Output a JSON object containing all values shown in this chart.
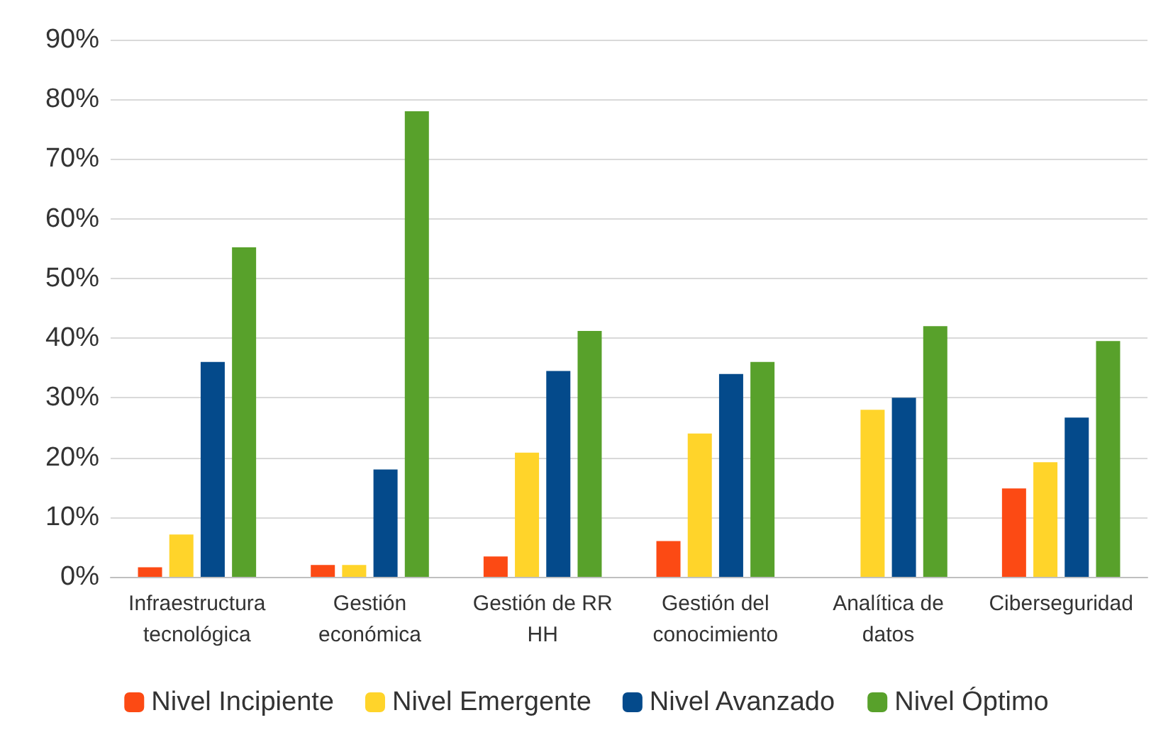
{
  "chart_data": {
    "type": "bar",
    "categories": [
      "Infraestructura\ntecnológica",
      "Gestión\neconómica",
      "Gestión de RR\nHH",
      "Gestión del\nconocimiento",
      "Analítica de\ndatos",
      "Ciberseguridad"
    ],
    "series": [
      {
        "name": "Nivel Incipiente",
        "color": "#fc4a14",
        "values": [
          1.6,
          2,
          3.4,
          6,
          0,
          14.8
        ]
      },
      {
        "name": "Nivel Emergente",
        "color": "#ffd42a",
        "values": [
          7.1,
          2,
          20.8,
          24,
          28,
          19.2
        ]
      },
      {
        "name": "Nivel Avanzado",
        "color": "#044a8b",
        "values": [
          36,
          18,
          34.5,
          34,
          30,
          26.7
        ]
      },
      {
        "name": "Nivel Óptimo",
        "color": "#58a12b",
        "values": [
          55.2,
          78,
          41.2,
          36,
          42,
          39.5
        ]
      }
    ],
    "ylim": [
      0,
      90
    ],
    "yticks": [
      {
        "value": 0,
        "label": "0%"
      },
      {
        "value": 10,
        "label": "10%"
      },
      {
        "value": 20,
        "label": "20%"
      },
      {
        "value": 30,
        "label": "30%"
      },
      {
        "value": 40,
        "label": "40%"
      },
      {
        "value": 50,
        "label": "50%"
      },
      {
        "value": 60,
        "label": "60%"
      },
      {
        "value": 70,
        "label": "70%"
      },
      {
        "value": 80,
        "label": "80%"
      },
      {
        "value": 90,
        "label": "90%"
      }
    ],
    "grid": "y",
    "legend": "bottom"
  }
}
